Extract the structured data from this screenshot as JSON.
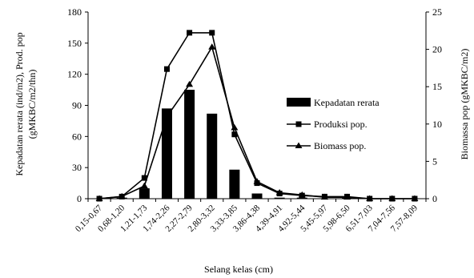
{
  "chart_data": {
    "type": "bar",
    "categories": [
      "0,15-0,67",
      "0,68-1,20",
      "1,21-1,73",
      "1,74-2,26",
      "2,27-2,79",
      "2,80-3,32",
      "3,33-3,85",
      "3,86-4,38",
      "4,39-4,91",
      "4,92-5,44",
      "5,45-5,97",
      "5,98-6,50",
      "6,51-7,03",
      "7,04-7,56",
      "7,57-8,09"
    ],
    "xlabel": "Selang kelas (cm)",
    "ylabel_left": [
      "Kepadatan rerata (ind/m2), Prod. pop",
      "(gMKBC/m2/thn)"
    ],
    "ylabel_right": "Biomassa pop (gMKBC/m2)",
    "ylim_left": [
      0,
      180
    ],
    "yticks_left": [
      "0",
      "30",
      "60",
      "90",
      "120",
      "150",
      "180"
    ],
    "ylim_right": [
      0,
      25
    ],
    "yticks_right": [
      "0",
      "5",
      "10",
      "15",
      "20",
      "25"
    ],
    "series": [
      {
        "name": "Kepadatan rerata",
        "kind": "bar",
        "axis": "left",
        "color": "#000000",
        "values": [
          0,
          1,
          10,
          87,
          105,
          82,
          28,
          5,
          1,
          1,
          0,
          1,
          0,
          0,
          0
        ]
      },
      {
        "name": "Produksi pop.",
        "kind": "line",
        "marker": "square",
        "axis": "left",
        "color": "#000000",
        "values": [
          0,
          2,
          20,
          125,
          160,
          160,
          62,
          15,
          5,
          3,
          2,
          2,
          0,
          0,
          0
        ]
      },
      {
        "name": "Biomass pop.",
        "kind": "line",
        "marker": "triangle",
        "axis": "right",
        "color": "#000000",
        "values": [
          0,
          0.3,
          1.7,
          11,
          15.3,
          20.3,
          9.5,
          2.3,
          0.8,
          0.5,
          0.2,
          0.2,
          0,
          0,
          0
        ]
      }
    ],
    "legend_position": "right-center",
    "grid": false
  }
}
